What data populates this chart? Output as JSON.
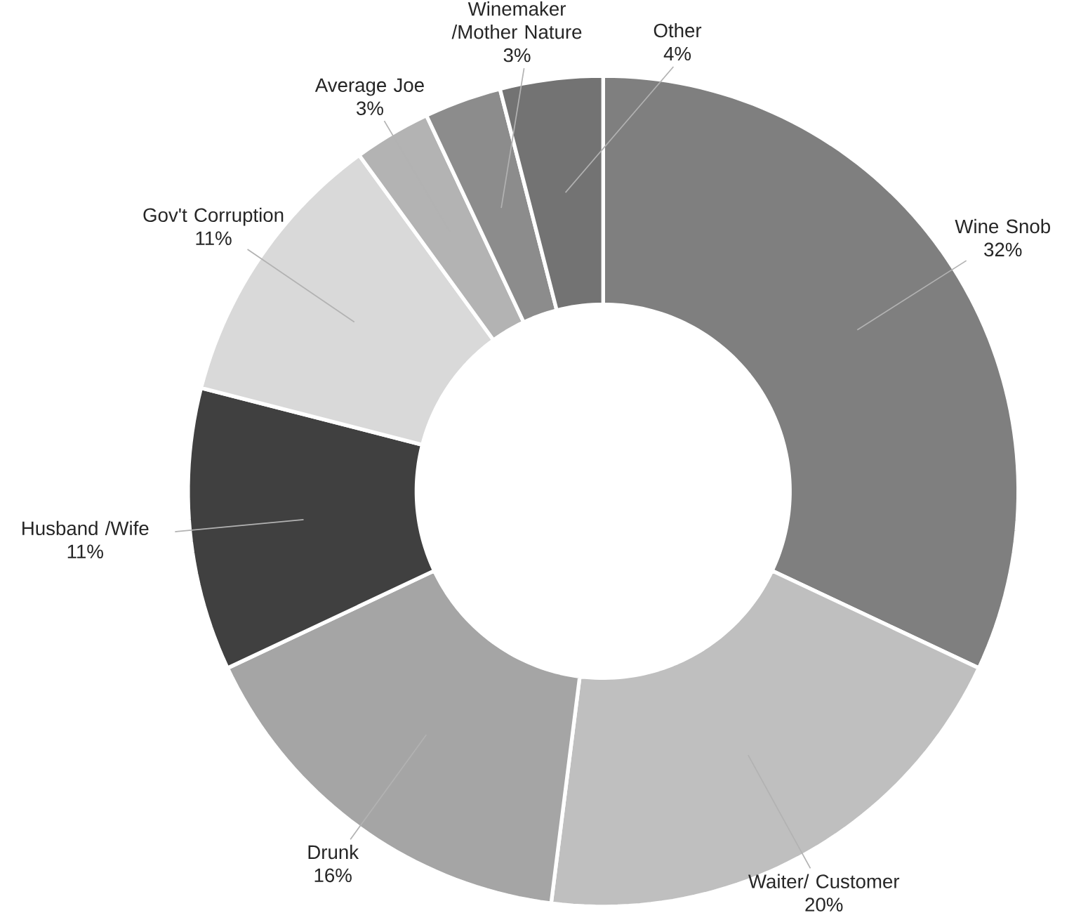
{
  "chart_data": {
    "type": "donut",
    "categories": [
      "Wine Snob",
      "Waiter/ Customer",
      "Drunk",
      "Husband /Wife",
      "Gov't Corruption",
      "Average Joe",
      "Winemaker /Mother Nature",
      "Other"
    ],
    "values": [
      32,
      20,
      16,
      11,
      11,
      3,
      3,
      4
    ],
    "value_labels": [
      "32%",
      "20%",
      "16%",
      "11%",
      "11%",
      "3%",
      "3%",
      "4%"
    ],
    "colors": [
      "#7f7f7f",
      "#bfbfbf",
      "#a5a5a5",
      "#404040",
      "#d9d9d9",
      "#b3b3b3",
      "#8c8c8c",
      "#737373"
    ]
  }
}
